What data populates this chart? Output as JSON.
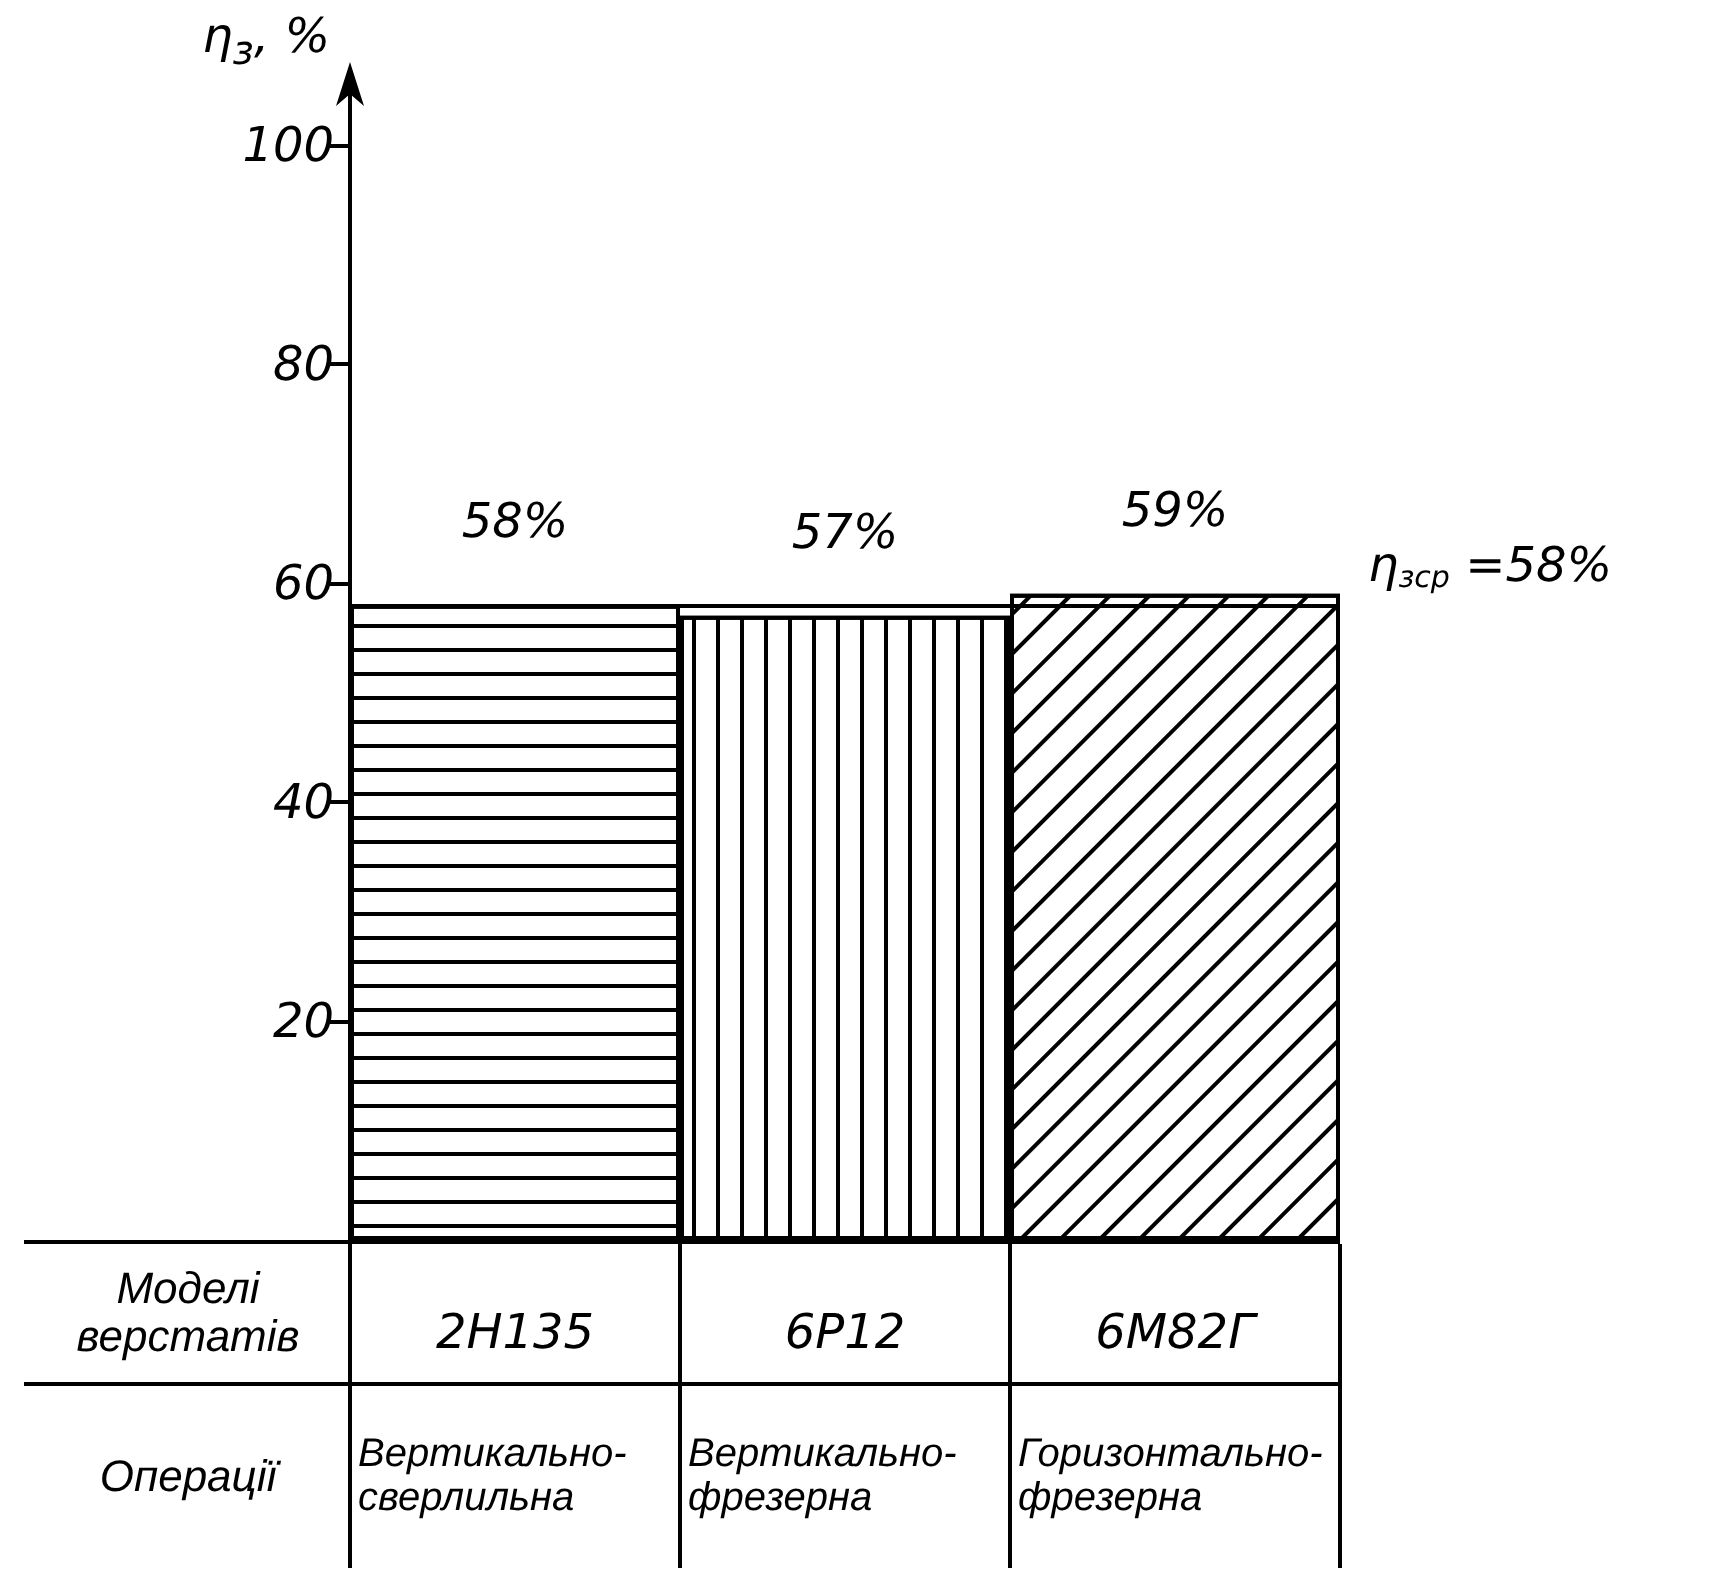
{
  "chart_data": {
    "type": "bar",
    "ylabel": "η$_{з}$, %",
    "xlabel": "Моделі верстатів",
    "categories": [
      "2Н135",
      "6Р12",
      "6М82Г"
    ],
    "values": [
      58,
      57,
      59
    ],
    "value_labels": [
      "58%",
      "57%",
      "59%"
    ],
    "color": "#ffffff",
    "ylim": [
      0,
      105
    ],
    "yticks": [
      20,
      40,
      60,
      80,
      100
    ],
    "ref_lines": [
      {
        "axis": "y",
        "value": 58,
        "label": "η$_{зср}$ =58%",
        "color": "#000000"
      }
    ],
    "annotations": [
      "Операції",
      "Вертикально-сверлильна",
      "Вертикально-фрезерна",
      "Горизонтально-фрезерна"
    ],
    "grid": false
  }
}
